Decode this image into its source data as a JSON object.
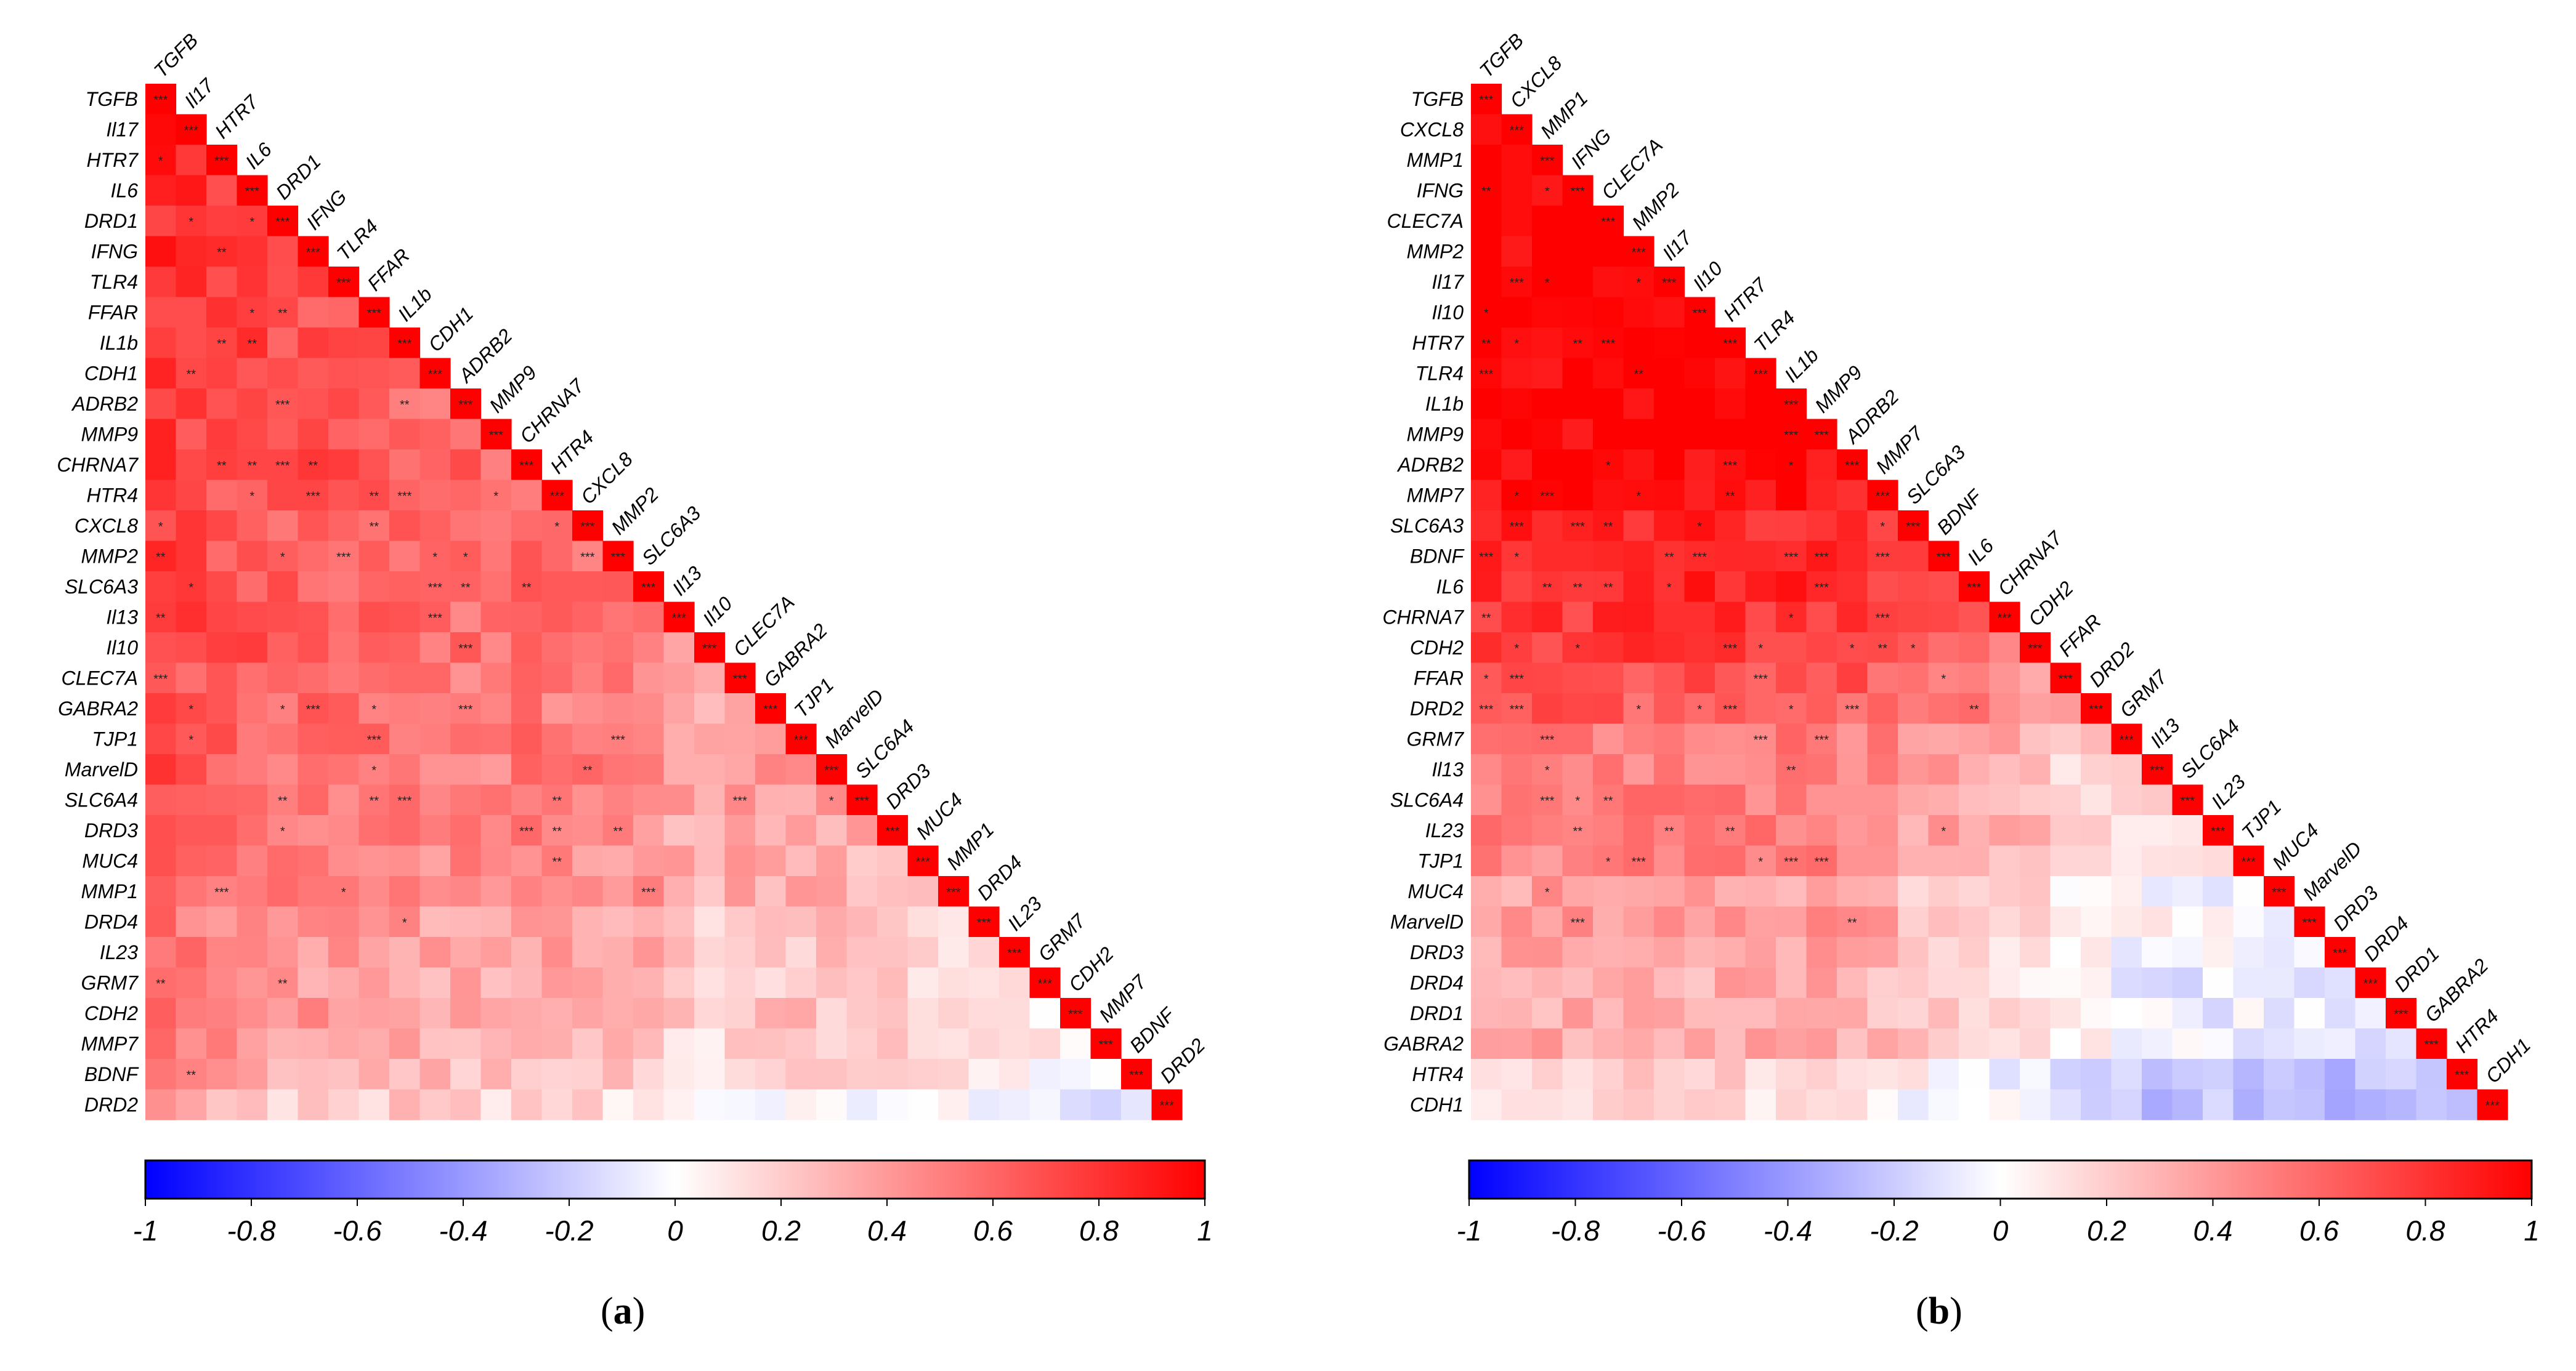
{
  "colors": {
    "negative": "#0000ff",
    "zero": "#ffffff",
    "positive": "#ff0000"
  },
  "colorbar_ticks": [
    "-1",
    "-0.8",
    "-0.6",
    "-0.4",
    "-0.2",
    "0",
    "0.2",
    "0.4",
    "0.6",
    "0.8",
    "1"
  ],
  "panels": [
    {
      "label_prefix": "(",
      "label": "a",
      "label_suffix": ")"
    },
    {
      "label_prefix": "(",
      "label": "b",
      "label_suffix": ")"
    }
  ],
  "chart_data": [
    {
      "type": "heatmap",
      "title": "(a)",
      "subtype": "lower-triangular correlation matrix",
      "value_range": [
        -1,
        1
      ],
      "colorbar_ticks": [
        -1,
        -0.8,
        -0.6,
        -0.4,
        -0.2,
        0,
        0.2,
        0.4,
        0.6,
        0.8,
        1
      ],
      "significance_legend": "* / ** / *** significance marks",
      "genes": [
        "TGFB",
        "Il17",
        "HTR7",
        "IL6",
        "DRD1",
        "IFNG",
        "TLR4",
        "FFAR",
        "IL1b",
        "CDH1",
        "ADRB2",
        "MMP9",
        "CHRNA7",
        "HTR4",
        "CXCL8",
        "MMP2",
        "SLC6A3",
        "Il13",
        "Il10",
        "CLEC7A",
        "GABRA2",
        "TJP1",
        "MarvelD",
        "SLC6A4",
        "DRD3",
        "MUC4",
        "MMP1",
        "DRD4",
        "IL23",
        "GRM7",
        "CDH2",
        "MMP7",
        "BDNF",
        "DRD2"
      ],
      "row_base": [
        0.95,
        0.85,
        0.78,
        0.75,
        0.68,
        0.72,
        0.7,
        0.66,
        0.68,
        0.6,
        0.58,
        0.58,
        0.66,
        0.58,
        0.58,
        0.55,
        0.58,
        0.55,
        0.58,
        0.45,
        0.45,
        0.45,
        0.45,
        0.42,
        0.38,
        0.32,
        0.28,
        0.15,
        0.12,
        0.05,
        0.1,
        0.05,
        -0.05,
        -0.25
      ],
      "col_base": [
        0.95,
        0.88,
        0.8,
        0.76,
        0.68,
        0.72,
        0.68,
        0.66,
        0.65,
        0.58,
        0.58,
        0.55,
        0.64,
        0.58,
        0.55,
        0.52,
        0.55,
        0.3,
        0.25,
        0.38,
        0.35,
        0.38,
        0.35,
        0.3,
        0.28,
        0.25,
        0.22,
        0.15,
        0.12,
        0.1,
        0.08,
        0.05,
        0.0,
        1.0
      ],
      "significance_density": 0.22
    },
    {
      "type": "heatmap",
      "title": "(b)",
      "subtype": "lower-triangular correlation matrix",
      "value_range": [
        -1,
        1
      ],
      "colorbar_ticks": [
        -1,
        -0.8,
        -0.6,
        -0.4,
        -0.2,
        0,
        0.2,
        0.4,
        0.6,
        0.8,
        1
      ],
      "significance_legend": "* / ** / *** significance marks",
      "genes": [
        "TGFB",
        "CXCL8",
        "MMP1",
        "IFNG",
        "CLEC7A",
        "MMP2",
        "Il17",
        "Il10",
        "HTR7",
        "TLR4",
        "IL1b",
        "MMP9",
        "ADRB2",
        "MMP7",
        "SLC6A3",
        "BDNF",
        "IL6",
        "CHRNA7",
        "CDH2",
        "FFAR",
        "DRD2",
        "GRM7",
        "Il13",
        "SLC6A4",
        "IL23",
        "TJP1",
        "MUC4",
        "MarvelD",
        "DRD3",
        "DRD4",
        "DRD1",
        "GABRA2",
        "HTR4",
        "CDH1"
      ],
      "row_base": [
        1.0,
        1.0,
        1.0,
        1.0,
        1.0,
        1.0,
        1.0,
        1.0,
        1.0,
        1.0,
        1.0,
        1.0,
        0.95,
        0.88,
        0.72,
        0.72,
        0.68,
        0.58,
        0.52,
        0.35,
        0.28,
        0.05,
        0.02,
        0.02,
        0.0,
        -0.05,
        -0.25,
        -0.2,
        -0.3,
        -0.35,
        -0.32,
        -0.3,
        -0.62,
        -0.7
      ],
      "col_base": [
        1.0,
        1.0,
        1.0,
        1.0,
        1.0,
        1.0,
        1.0,
        1.0,
        1.0,
        1.0,
        1.0,
        1.0,
        0.95,
        0.88,
        0.72,
        0.72,
        0.68,
        0.58,
        0.52,
        0.35,
        0.3,
        0.25,
        0.22,
        0.2,
        0.2,
        0.18,
        0.15,
        0.15,
        0.12,
        0.12,
        0.1,
        0.1,
        0.08,
        1.0
      ],
      "significance_density": 0.35
    }
  ]
}
